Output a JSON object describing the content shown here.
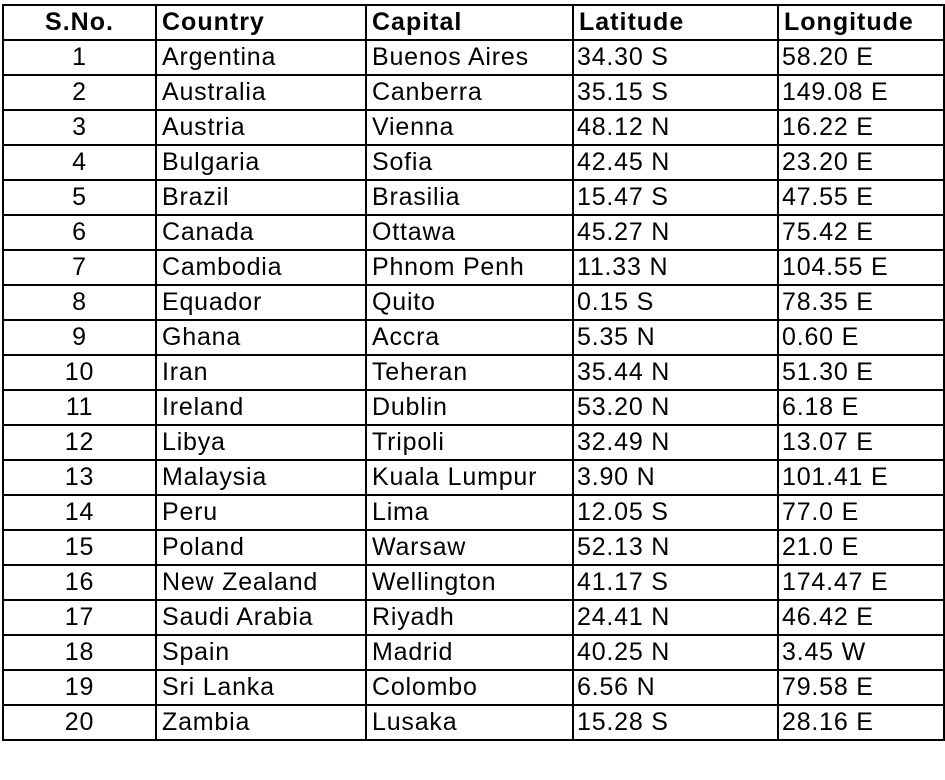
{
  "table": {
    "headers": [
      "S.No.",
      "Country",
      "Capital",
      "Latitude",
      "Longitude"
    ],
    "rows": [
      {
        "sno": "1",
        "country": "Argentina",
        "capital": "Buenos Aires",
        "latitude": "34.30 S",
        "longitude": "58.20 E"
      },
      {
        "sno": "2",
        "country": "Australia",
        "capital": "Canberra",
        "latitude": "35.15 S",
        "longitude": "149.08 E"
      },
      {
        "sno": "3",
        "country": "Austria",
        "capital": "Vienna",
        "latitude": "48.12 N",
        "longitude": "16.22 E"
      },
      {
        "sno": "4",
        "country": "Bulgaria",
        "capital": "Sofia",
        "latitude": "42.45 N",
        "longitude": "23.20 E"
      },
      {
        "sno": "5",
        "country": "Brazil",
        "capital": "Brasilia",
        "latitude": "15.47 S",
        "longitude": "47.55 E"
      },
      {
        "sno": "6",
        "country": "Canada",
        "capital": "Ottawa",
        "latitude": "45.27 N",
        "longitude": "75.42 E"
      },
      {
        "sno": "7",
        "country": "Cambodia",
        "capital": "Phnom Penh",
        "latitude": "11.33 N",
        "longitude": "104.55 E"
      },
      {
        "sno": "8",
        "country": "Equador",
        "capital": "Quito",
        "latitude": "0.15 S",
        "longitude": "78.35 E"
      },
      {
        "sno": "9",
        "country": "Ghana",
        "capital": "Accra",
        "latitude": "5.35 N",
        "longitude": "0.60 E"
      },
      {
        "sno": "10",
        "country": "Iran",
        "capital": "Teheran",
        "latitude": "35.44 N",
        "longitude": "51.30 E"
      },
      {
        "sno": "11",
        "country": "Ireland",
        "capital": "Dublin",
        "latitude": "53.20 N",
        "longitude": "6.18 E"
      },
      {
        "sno": "12",
        "country": "Libya",
        "capital": "Tripoli",
        "latitude": "32.49 N",
        "longitude": "13.07 E"
      },
      {
        "sno": "13",
        "country": "Malaysia",
        "capital": "Kuala Lumpur",
        "latitude": "3.90 N",
        "longitude": "101.41 E"
      },
      {
        "sno": "14",
        "country": "Peru",
        "capital": "Lima",
        "latitude": "12.05 S",
        "longitude": "77.0 E"
      },
      {
        "sno": "15",
        "country": "Poland",
        "capital": "Warsaw",
        "latitude": "52.13 N",
        "longitude": "21.0 E"
      },
      {
        "sno": "16",
        "country": "New Zealand",
        "capital": "Wellington",
        "latitude": "41.17 S",
        "longitude": "174.47 E"
      },
      {
        "sno": "17",
        "country": "Saudi Arabia",
        "capital": "Riyadh",
        "latitude": "24.41 N",
        "longitude": "46.42 E"
      },
      {
        "sno": "18",
        "country": "Spain",
        "capital": "Madrid",
        "latitude": "40.25 N",
        "longitude": "3.45 W"
      },
      {
        "sno": "19",
        "country": "Sri Lanka",
        "capital": "Colombo",
        "latitude": "6.56 N",
        "longitude": "79.58 E"
      },
      {
        "sno": "20",
        "country": "Zambia",
        "capital": "Lusaka",
        "latitude": "15.28 S",
        "longitude": "28.16 E"
      }
    ]
  }
}
